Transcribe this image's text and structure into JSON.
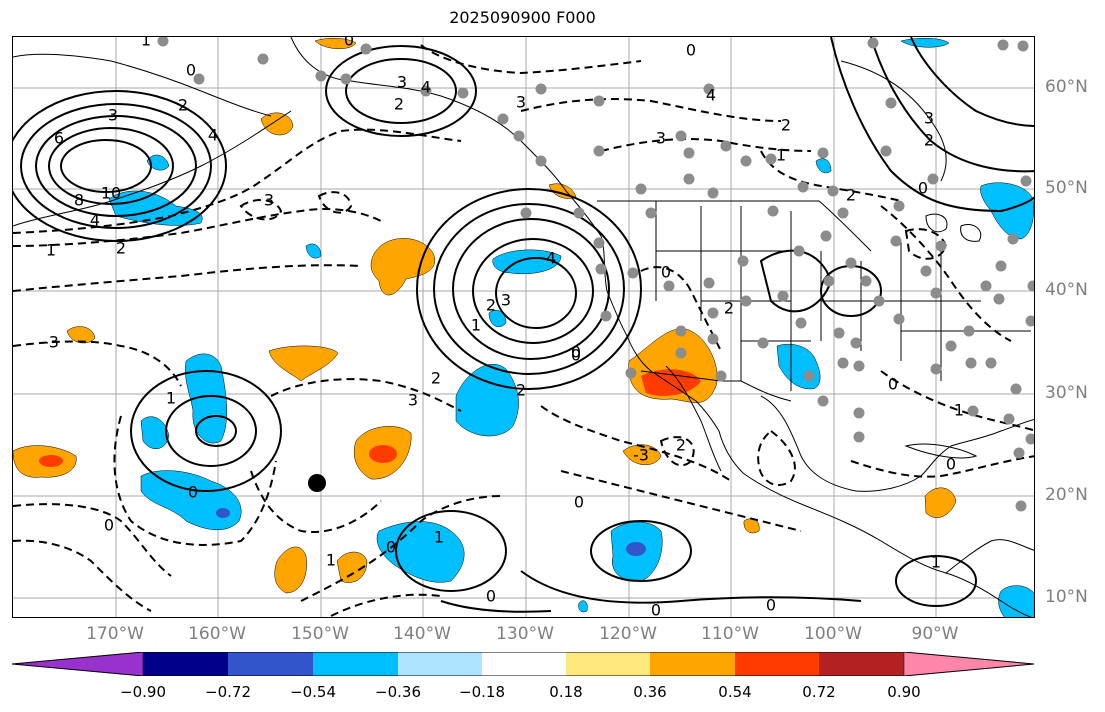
{
  "title": "2025090900 F000",
  "lon_labels": [
    "170°W",
    "160°W",
    "150°W",
    "140°W",
    "130°W",
    "120°W",
    "110°W",
    "100°W",
    "90°W"
  ],
  "lat_labels": [
    "60°N",
    "50°N",
    "40°N",
    "30°N",
    "20°N",
    "10°N"
  ],
  "colorbar": {
    "ticks": [
      "−0.90",
      "−0.72",
      "−0.54",
      "−0.36",
      "−0.18",
      "0.18",
      "0.36",
      "0.54",
      "0.72",
      "0.90"
    ],
    "colors": [
      "#9932cc",
      "#00008b",
      "#3355cc",
      "#00bfff",
      "#aee4ff",
      "#ffffff",
      "#ffe97f",
      "#ffa500",
      "#ff3c00",
      "#b22222",
      "#ff88aa"
    ]
  },
  "contour_labels": [
    "1",
    "0",
    "2",
    "3",
    "4",
    "6",
    "8",
    "10",
    "4",
    "2",
    "1",
    "3",
    "0",
    "2",
    "3",
    "4",
    "3",
    "2",
    "1",
    "0",
    "-3",
    "2",
    "3",
    "1",
    "2",
    "0",
    "3",
    "2",
    "1",
    "0",
    "4",
    "3",
    "2",
    "0",
    "0",
    "2",
    "3",
    "2",
    "4",
    "0",
    "0",
    "1",
    "2",
    "0",
    "-3",
    "1",
    "0",
    "0",
    "0",
    "0",
    "1",
    "0",
    "0",
    "1"
  ],
  "colors": {
    "grid": "#a8a8a8",
    "coast": "#000000",
    "contour": "#000000",
    "station_dot": "#8c8c8c",
    "marker": "#000000",
    "axis_text": "#7f7f7f"
  }
}
